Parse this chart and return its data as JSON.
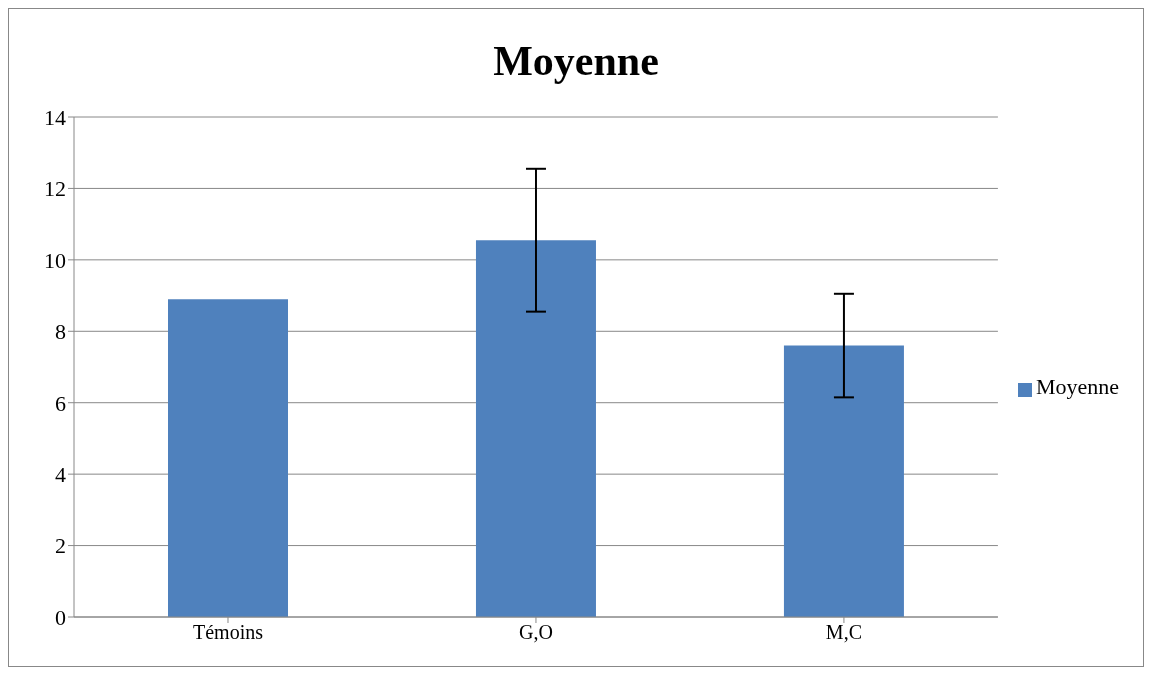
{
  "chart_data": {
    "type": "bar",
    "title": "Moyenne",
    "categories": [
      "Témoins",
      "G,O",
      "M,C"
    ],
    "series": [
      {
        "name": "Moyenne",
        "color": "#4f81bd",
        "values": [
          8.9,
          10.55,
          7.6
        ],
        "errors": [
          null,
          2.0,
          1.45
        ]
      }
    ],
    "ylim": [
      0,
      14
    ],
    "yticks": [
      0,
      2,
      4,
      6,
      8,
      10,
      12,
      14
    ],
    "grid": "y",
    "legend": "right"
  }
}
